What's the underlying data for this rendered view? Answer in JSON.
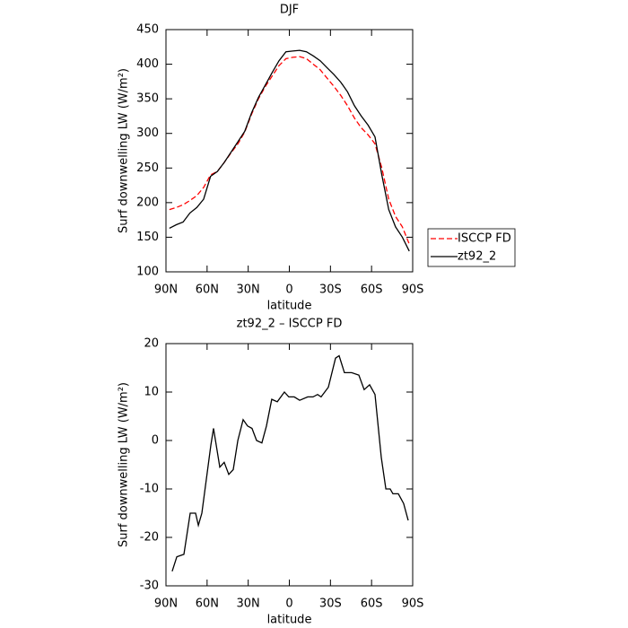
{
  "chart_data": [
    {
      "type": "line",
      "title": "DJF",
      "xlabel": "latitude",
      "ylabel": "Surf downwelling LW (W/m²)",
      "x": [
        87.5,
        82.5,
        77.5,
        72.5,
        67.5,
        62.5,
        57.5,
        52.5,
        47.5,
        42.5,
        37.5,
        32.5,
        27.5,
        22.5,
        17.5,
        12.5,
        7.5,
        2.5,
        -2.5,
        -7.5,
        -12.5,
        -17.5,
        -22.5,
        -27.5,
        -32.5,
        -37.5,
        -42.5,
        -47.5,
        -52.5,
        -57.5,
        -62.5,
        -67.5,
        -72.5,
        -77.5,
        -82.5,
        -87.5
      ],
      "series": [
        {
          "name": "ISCCP FD",
          "color": "#ff0000",
          "dashed": true,
          "values": [
            190,
            193,
            197,
            203,
            210,
            222,
            240,
            245,
            258,
            272,
            285,
            302,
            328,
            350,
            368,
            383,
            398,
            408,
            410,
            411,
            408,
            400,
            392,
            380,
            368,
            355,
            340,
            322,
            308,
            298,
            285,
            250,
            205,
            180,
            165,
            140
          ]
        },
        {
          "name": "zt92_2",
          "color": "#000000",
          "dashed": false,
          "values": [
            163,
            168,
            172,
            185,
            193,
            205,
            238,
            245,
            258,
            273,
            288,
            303,
            330,
            352,
            370,
            388,
            405,
            418,
            419,
            420,
            418,
            412,
            405,
            395,
            385,
            374,
            360,
            340,
            325,
            312,
            295,
            240,
            190,
            165,
            150,
            130
          ]
        }
      ],
      "xlim": [
        90,
        -90
      ],
      "xticks": [
        {
          "value": 90,
          "label": "90N"
        },
        {
          "value": 60,
          "label": "60N"
        },
        {
          "value": 30,
          "label": "30N"
        },
        0,
        {
          "value": -30,
          "label": "30S"
        },
        {
          "value": -60,
          "label": "60S"
        },
        {
          "value": -90,
          "label": "90S"
        }
      ],
      "ylim": [
        100,
        450
      ],
      "yticks": [
        100,
        150,
        200,
        250,
        300,
        350,
        400,
        450
      ],
      "legend": "right"
    },
    {
      "type": "line",
      "title": "zt92_2 – ISCCP FD",
      "xlabel": "latitude",
      "ylabel": "Surf downwelling LW (W/m²)",
      "x": [
        85.5,
        82.1,
        76.9,
        72.3,
        68.4,
        66.4,
        63.8,
        57.3,
        55.3,
        50.7,
        47.5,
        44.2,
        40.9,
        37.6,
        33.7,
        30.5,
        27.2,
        23.9,
        20.0,
        16.7,
        12.8,
        8.8,
        3.6,
        0.4,
        -3.6,
        -7.5,
        -13.4,
        -17.3,
        -20.6,
        -23.2,
        -28.5,
        -33.7,
        -36.3,
        -40.2,
        -45.5,
        -50.7,
        -54.6,
        -58.6,
        -62.5,
        -67.1,
        -70.4,
        -73.6,
        -75.6,
        -79.5,
        -83.4,
        -86.7
      ],
      "series": [
        {
          "name": null,
          "color": "#000000",
          "dashed": false,
          "values": [
            -27,
            -24,
            -23.5,
            -15,
            -15,
            -17.5,
            -15,
            -1,
            2.5,
            -5.5,
            -4.5,
            -7,
            -6,
            0,
            4.3,
            3,
            2.5,
            0,
            -0.5,
            3,
            8.5,
            8,
            10,
            9,
            9,
            8.3,
            9,
            9,
            9.5,
            9,
            11,
            17,
            17.5,
            14,
            14,
            13.5,
            10.5,
            11.5,
            9.5,
            -3.5,
            -10,
            -10,
            -11,
            -11,
            -13,
            -16.5
          ]
        }
      ],
      "xlim": [
        90,
        -90
      ],
      "xticks": [
        {
          "value": 90,
          "label": "90N"
        },
        {
          "value": 60,
          "label": "60N"
        },
        {
          "value": 30,
          "label": "30N"
        },
        0,
        {
          "value": -30,
          "label": "30S"
        },
        {
          "value": -60,
          "label": "60S"
        },
        {
          "value": -90,
          "label": "90S"
        }
      ],
      "ylim": [
        -30,
        20
      ],
      "yticks": [
        -30,
        -20,
        -10,
        0,
        10,
        20
      ]
    }
  ]
}
